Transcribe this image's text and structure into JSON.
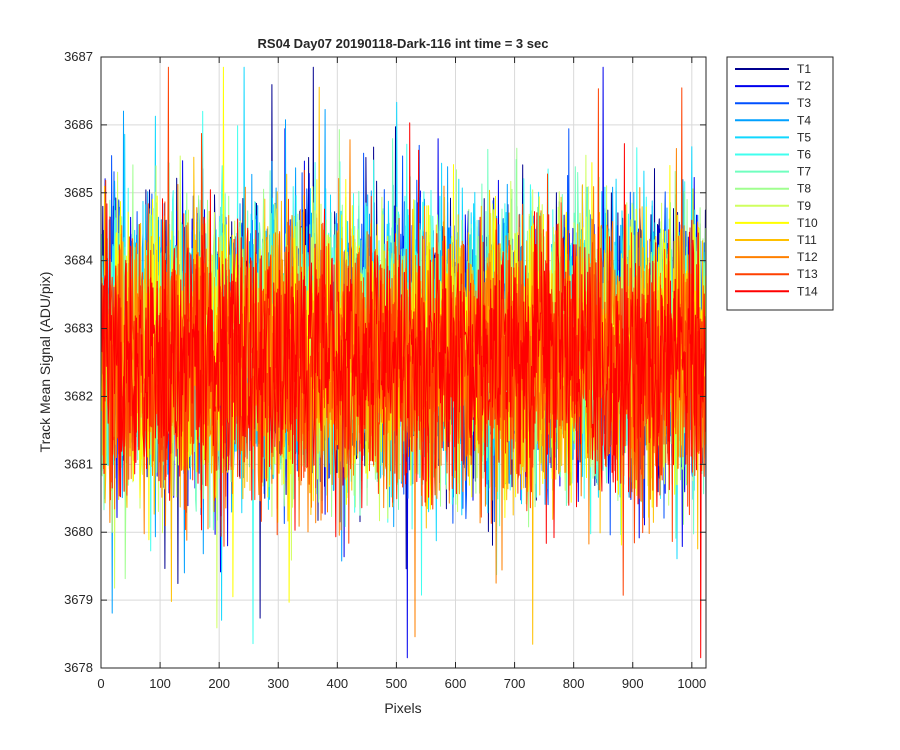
{
  "chart_data": {
    "type": "line",
    "title": "RS04 Day07 20190118-Dark-116 int time = 3 sec",
    "xlabel": "Pixels",
    "ylabel": "Track Mean Signal (ADU/pix)",
    "xlim": [
      0,
      1024
    ],
    "ylim": [
      3678,
      3687
    ],
    "xticks": [
      "0",
      "100",
      "200",
      "300",
      "400",
      "500",
      "600",
      "700",
      "800",
      "900",
      "1000"
    ],
    "yticks": [
      "3678",
      "3679",
      "3680",
      "3681",
      "3682",
      "3683",
      "3684",
      "3685",
      "3686",
      "3687"
    ],
    "grid": true,
    "legend_position": "outside-top-right",
    "num_points": 1024,
    "series": [
      {
        "name": "T1",
        "color": "#00008f",
        "mean": 3682.8,
        "spread": 1.0
      },
      {
        "name": "T2",
        "color": "#0000ee",
        "mean": 3682.8,
        "spread": 1.0
      },
      {
        "name": "T3",
        "color": "#0050ff",
        "mean": 3682.8,
        "spread": 1.0
      },
      {
        "name": "T4",
        "color": "#00a0ff",
        "mean": 3682.8,
        "spread": 1.0
      },
      {
        "name": "T5",
        "color": "#10d8ff",
        "mean": 3682.8,
        "spread": 1.0
      },
      {
        "name": "T6",
        "color": "#40ffef",
        "mean": 3682.8,
        "spread": 1.0
      },
      {
        "name": "T7",
        "color": "#70ffbf",
        "mean": 3682.7,
        "spread": 1.0
      },
      {
        "name": "T8",
        "color": "#a0ff8f",
        "mean": 3682.7,
        "spread": 1.0
      },
      {
        "name": "T9",
        "color": "#cfff5f",
        "mean": 3682.7,
        "spread": 1.0
      },
      {
        "name": "T10",
        "color": "#ffff00",
        "mean": 3682.6,
        "spread": 1.0
      },
      {
        "name": "T11",
        "color": "#ffc000",
        "mean": 3682.6,
        "spread": 1.0
      },
      {
        "name": "T12",
        "color": "#ff8000",
        "mean": 3682.5,
        "spread": 1.0
      },
      {
        "name": "T13",
        "color": "#ff4000",
        "mean": 3682.5,
        "spread": 1.0
      },
      {
        "name": "T14",
        "color": "#ff0000",
        "mean": 3682.5,
        "spread": 0.95
      }
    ]
  }
}
